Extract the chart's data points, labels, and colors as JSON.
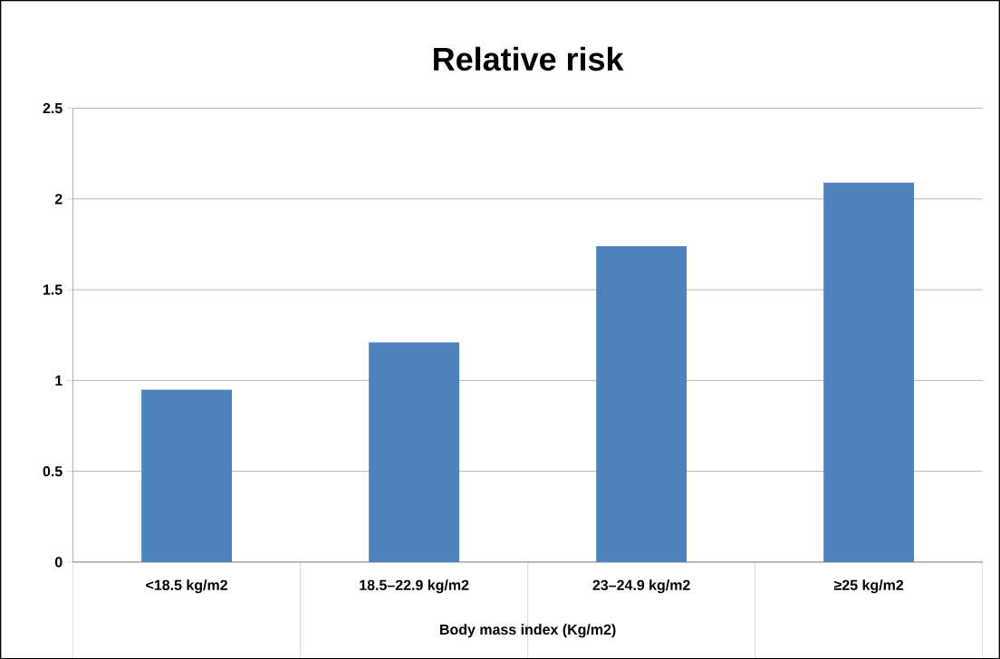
{
  "chart_data": {
    "type": "bar",
    "title": "Relative risk",
    "xlabel": "Body mass index (Kg/m2)",
    "categories": [
      "<18.5 kg/m2",
      "18.5–22.9 kg/m2",
      "23–24.9 kg/m2",
      "≥25 kg/m2"
    ],
    "values": [
      0.95,
      1.21,
      1.74,
      2.09
    ],
    "color": "#4f81bd",
    "ylim": [
      0,
      2.5
    ],
    "yticks": [
      0,
      0.5,
      1,
      1.5,
      2,
      2.5
    ],
    "grid": "y"
  }
}
